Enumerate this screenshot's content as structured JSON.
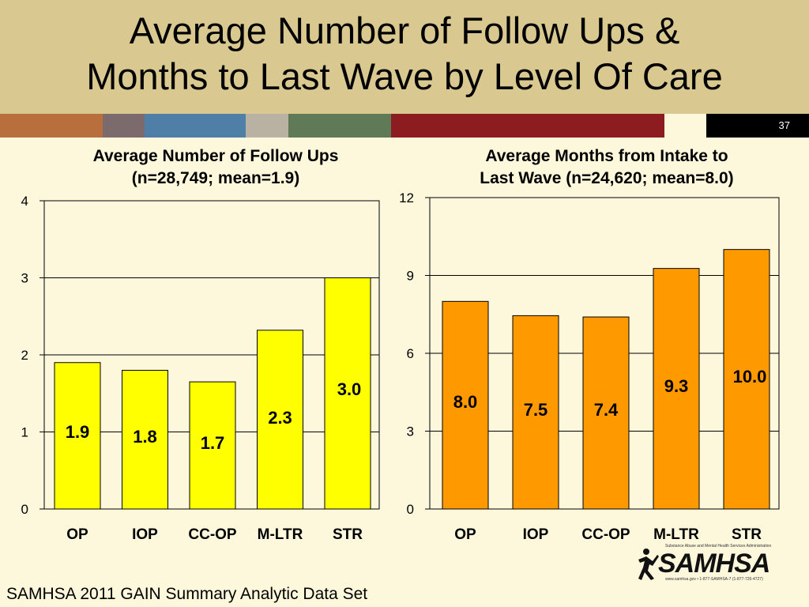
{
  "slide": {
    "title_line1": "Average Number of Follow Ups &",
    "title_line2": "Months to Last Wave by Level Of Care",
    "number": "37",
    "footer": "SAMHSA 2011 GAIN Summary Analytic Data Set",
    "logo": {
      "top_line": "Substance Abuse and Mental Health Services Administration",
      "wordmark": "SAMHSA",
      "bottom_line": "www.samhsa.gov • 1-877-SAMHSA-7 (1-877-726-4727)"
    },
    "stripe_colors": [
      "#B86F3D",
      "#7B6B6C",
      "#4F7FA6",
      "#B9B1A2",
      "#607A57",
      "#8C1C1F",
      "#FDF8DC",
      "#000000"
    ]
  },
  "chart_data": [
    {
      "type": "bar",
      "title": [
        "Average Number of Follow Ups",
        "(n=28,749; mean=1.9)"
      ],
      "categories": [
        "OP",
        "IOP",
        "CC-OP",
        "M-LTR",
        "STR"
      ],
      "values": [
        1.9,
        1.8,
        1.65,
        2.32,
        3.0
      ],
      "labels": [
        "1.9",
        "1.8",
        "1.7",
        "2.3",
        "3.0"
      ],
      "ylim": [
        0,
        4
      ],
      "yticks": [
        "0",
        "1",
        "2",
        "3",
        "4"
      ],
      "grid": true,
      "color": "#FFFF00"
    },
    {
      "type": "bar",
      "title": [
        "Average Months from Intake to",
        "Last Wave (n=24,620; mean=8.0)"
      ],
      "categories": [
        "OP",
        "IOP",
        "CC-OP",
        "M-LTR",
        "STR"
      ],
      "values": [
        8.0,
        7.45,
        7.4,
        9.27,
        10.0
      ],
      "labels": [
        "8.0",
        "7.5",
        "7.4",
        "9.3",
        "10.0"
      ],
      "ylim": [
        0,
        12
      ],
      "yticks": [
        "0",
        "3",
        "6",
        "9",
        "12"
      ],
      "grid": true,
      "color": "#FF9900"
    }
  ]
}
